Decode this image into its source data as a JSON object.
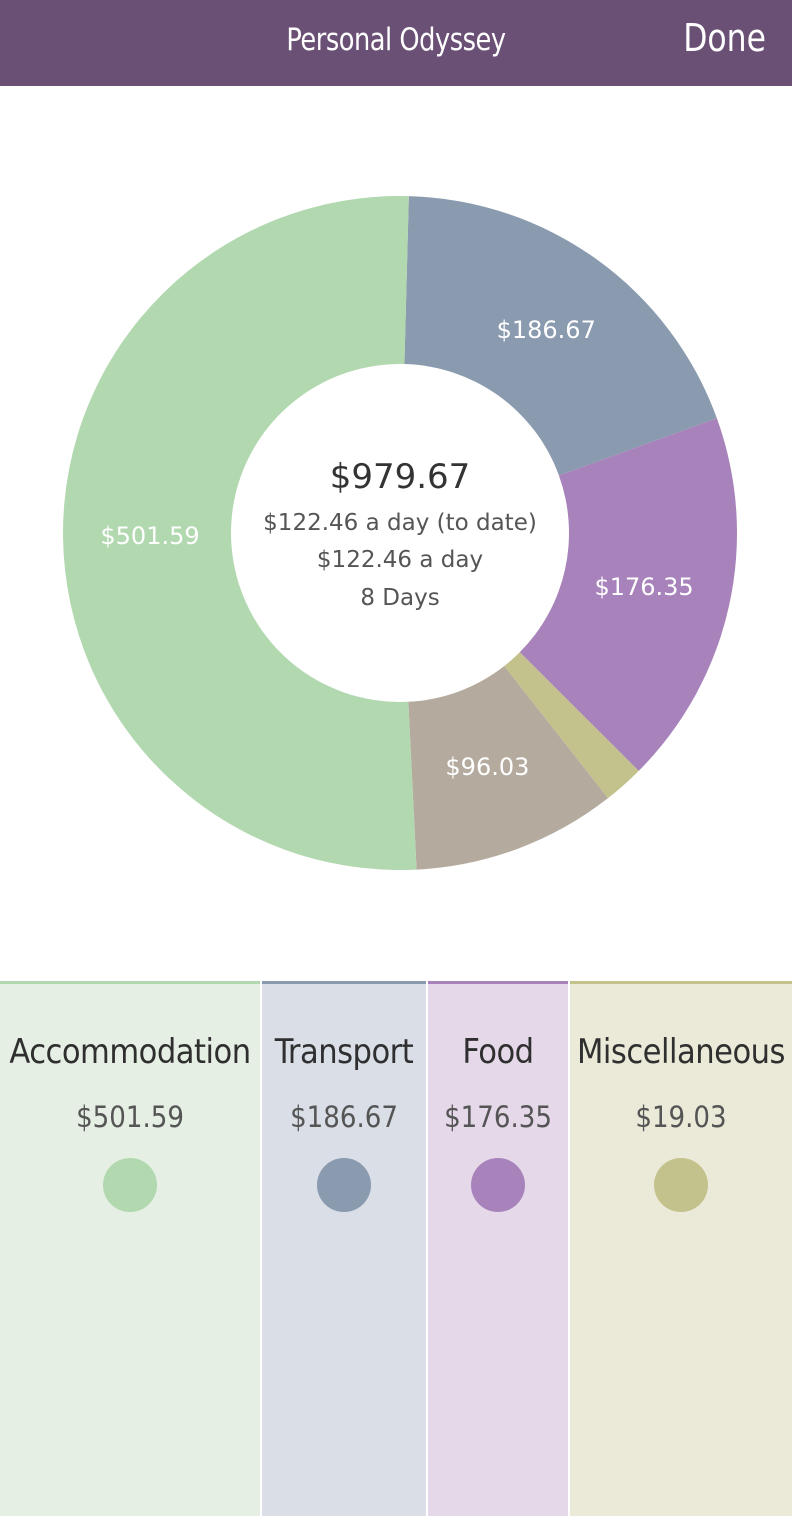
{
  "header": {
    "title": "Personal Odyssey",
    "done_label": "Done"
  },
  "colors": {
    "header_bg": "#6b5076",
    "accommodation": "#b2d8b0",
    "transport": "#8a9aaf",
    "food": "#a883bb",
    "miscellaneous": "#c4c28c",
    "other": "#b4ab9e"
  },
  "chart_data": {
    "type": "pie",
    "style": "donut",
    "slices": [
      {
        "value": 186.67,
        "label": "$186.67",
        "color": "#8a9aaf"
      },
      {
        "value": 176.35,
        "label": "$176.35",
        "color": "#a883bb"
      },
      {
        "value": 19.03,
        "label": "",
        "color": "#c4c28c"
      },
      {
        "value": 96.03,
        "label": "$96.03",
        "color": "#b4ab9e"
      },
      {
        "value": 501.59,
        "label": "$501.59",
        "color": "#b2d8b0"
      }
    ],
    "center": {
      "total": "$979.67",
      "per_day_to_date": "$122.46 a day (to date)",
      "per_day": "$122.46 a day",
      "days": "8 Days"
    }
  },
  "legend": [
    {
      "name": "Accommodation",
      "value": "$501.59",
      "color": "#b2d8b0",
      "bg": "#e5efe4"
    },
    {
      "name": "Transport",
      "value": "$186.67",
      "color": "#8a9aaf",
      "bg": "#d9dee7"
    },
    {
      "name": "Food",
      "value": "$176.35",
      "color": "#a883bb",
      "bg": "#e4d8e9"
    },
    {
      "name": "Miscellaneous",
      "value": "$19.03",
      "color": "#c4c28c",
      "bg": "#ebe9d8"
    }
  ]
}
